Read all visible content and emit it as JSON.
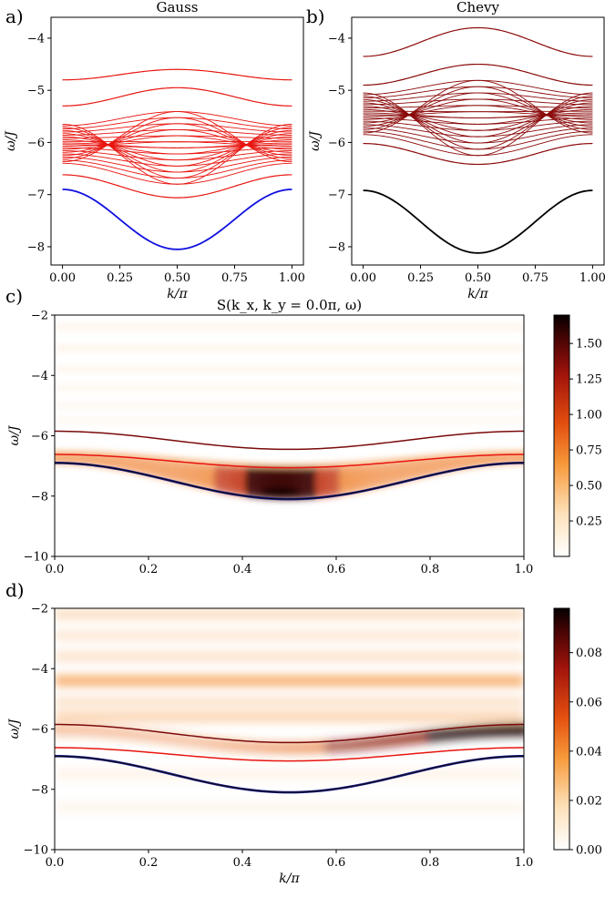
{
  "chart_data": [
    {
      "panel": "a)",
      "type": "line",
      "title": "Gauss",
      "xlabel": "k/π",
      "ylabel": "ω/J",
      "xlim": [
        -0.05,
        1.05
      ],
      "ylim": [
        -8.35,
        -3.6
      ],
      "xticks": [
        "0.00",
        "0.25",
        "0.50",
        "0.75",
        "1.00"
      ],
      "yticks": [
        "−8",
        "−7",
        "−6",
        "−5",
        "−4"
      ],
      "xtick_values": [
        0,
        0.25,
        0.5,
        0.75,
        1.0
      ],
      "ytick_values": [
        -8,
        -7,
        -6,
        -5,
        -4
      ],
      "colors": {
        "band": "#e8150f",
        "ground": "#1010e0"
      },
      "series": [
        {
          "role": "ground",
          "at_k0": -6.9,
          "at_k_half": -8.05
        },
        {
          "role": "band",
          "at_k0": -6.62,
          "at_k_half": -7.06
        },
        {
          "role": "band",
          "at_k0": -4.8,
          "at_k_half": -4.6
        },
        {
          "role": "band",
          "at_k0": -5.3,
          "at_k_half": -4.95
        }
      ],
      "continuum": {
        "k0_range": [
          -6.4,
          -5.65
        ],
        "k_half_range": [
          -6.8,
          -5.35
        ],
        "lines": 26
      }
    },
    {
      "panel": "b)",
      "type": "line",
      "title": "Chevy",
      "xlabel": "k/π",
      "ylabel": "ω/J",
      "xlim": [
        -0.05,
        1.05
      ],
      "ylim": [
        -8.35,
        -3.6
      ],
      "xticks": [
        "0.00",
        "0.25",
        "0.50",
        "0.75",
        "1.00"
      ],
      "yticks": [
        "−8",
        "−7",
        "−6",
        "−5",
        "−4"
      ],
      "xtick_values": [
        0,
        0.25,
        0.5,
        0.75,
        1.0
      ],
      "ytick_values": [
        -8,
        -7,
        -6,
        -5,
        -4
      ],
      "colors": {
        "band": "#8b0a0a",
        "ground": "#000000"
      },
      "series": [
        {
          "role": "ground",
          "at_k0": -6.92,
          "at_k_half": -8.12
        },
        {
          "role": "band",
          "at_k0": -6.02,
          "at_k_half": -6.42
        },
        {
          "role": "band",
          "at_k0": -4.35,
          "at_k_half": -3.8
        },
        {
          "role": "band",
          "at_k0": -4.9,
          "at_k_half": -4.5
        }
      ],
      "continuum": {
        "k0_range": [
          -5.85,
          -5.05
        ],
        "k_half_range": [
          -6.25,
          -4.75
        ],
        "lines": 26
      }
    },
    {
      "panel": "c)",
      "type": "heatmap",
      "title": "S(k_x, k_y = 0.0π, ω)",
      "xlabel": "",
      "ylabel": "ω/J",
      "xlim": [
        0,
        1
      ],
      "ylim": [
        -10,
        -2
      ],
      "xticks": [
        "0.0",
        "0.2",
        "0.4",
        "0.6",
        "0.8",
        "1.0"
      ],
      "yticks": [
        "−10",
        "−8",
        "−6",
        "−4",
        "−2"
      ],
      "xtick_values": [
        0,
        0.2,
        0.4,
        0.6,
        0.8,
        1.0
      ],
      "ytick_values": [
        -10,
        -8,
        -6,
        -4,
        -2
      ],
      "colorbar": {
        "min": 0,
        "max": 1.7,
        "ticks": [
          "0.25",
          "0.50",
          "0.75",
          "1.00",
          "1.25",
          "1.50"
        ],
        "tick_values": [
          0.25,
          0.5,
          0.75,
          1.0,
          1.25,
          1.5
        ],
        "colormap": "gist_heat_r"
      },
      "overlay_lines": [
        {
          "color": "#7a0a0a",
          "at_k0": -5.85,
          "at_k_half": -6.45
        },
        {
          "color": "#e8150f",
          "at_k0": -6.62,
          "at_k_half": -7.06
        },
        {
          "color": "#1a1a8a",
          "at_k0": -6.9,
          "at_k_half": -8.1
        }
      ],
      "intensity_features": [
        {
          "description": "bright branch along lowest band",
          "peak_k": 0.48,
          "peak_omega": -7.85,
          "peak_value": 1.6
        }
      ]
    },
    {
      "panel": "d)",
      "type": "heatmap",
      "title": "",
      "xlabel": "k/π",
      "ylabel": "ω/J",
      "xlim": [
        0,
        1
      ],
      "ylim": [
        -10,
        -2
      ],
      "xticks": [
        "0.0",
        "0.2",
        "0.4",
        "0.6",
        "0.8",
        "1.0"
      ],
      "yticks": [
        "−10",
        "−8",
        "−6",
        "−4",
        "−2"
      ],
      "xtick_values": [
        0,
        0.2,
        0.4,
        0.6,
        0.8,
        1.0
      ],
      "ytick_values": [
        -10,
        -8,
        -6,
        -4,
        -2
      ],
      "colorbar": {
        "min": 0,
        "max": 0.098,
        "ticks": [
          "0.00",
          "0.02",
          "0.04",
          "0.06",
          "0.08"
        ],
        "tick_values": [
          0,
          0.02,
          0.04,
          0.06,
          0.08
        ],
        "colormap": "gist_heat_r"
      },
      "overlay_lines": [
        {
          "color": "#7a0a0a",
          "at_k0": -5.85,
          "at_k_half": -6.45
        },
        {
          "color": "#e8150f",
          "at_k0": -6.62,
          "at_k_half": -7.06
        },
        {
          "color": "#1a1a8a",
          "at_k0": -6.9,
          "at_k_half": -8.1
        }
      ],
      "intensity_features": [
        {
          "description": "strong band near upper line at large k",
          "peak_k": 0.9,
          "peak_omega": -6.15,
          "peak_value": 0.095
        },
        {
          "description": "horizontal stripe",
          "omega": -4.4,
          "value": 0.035
        }
      ]
    }
  ]
}
